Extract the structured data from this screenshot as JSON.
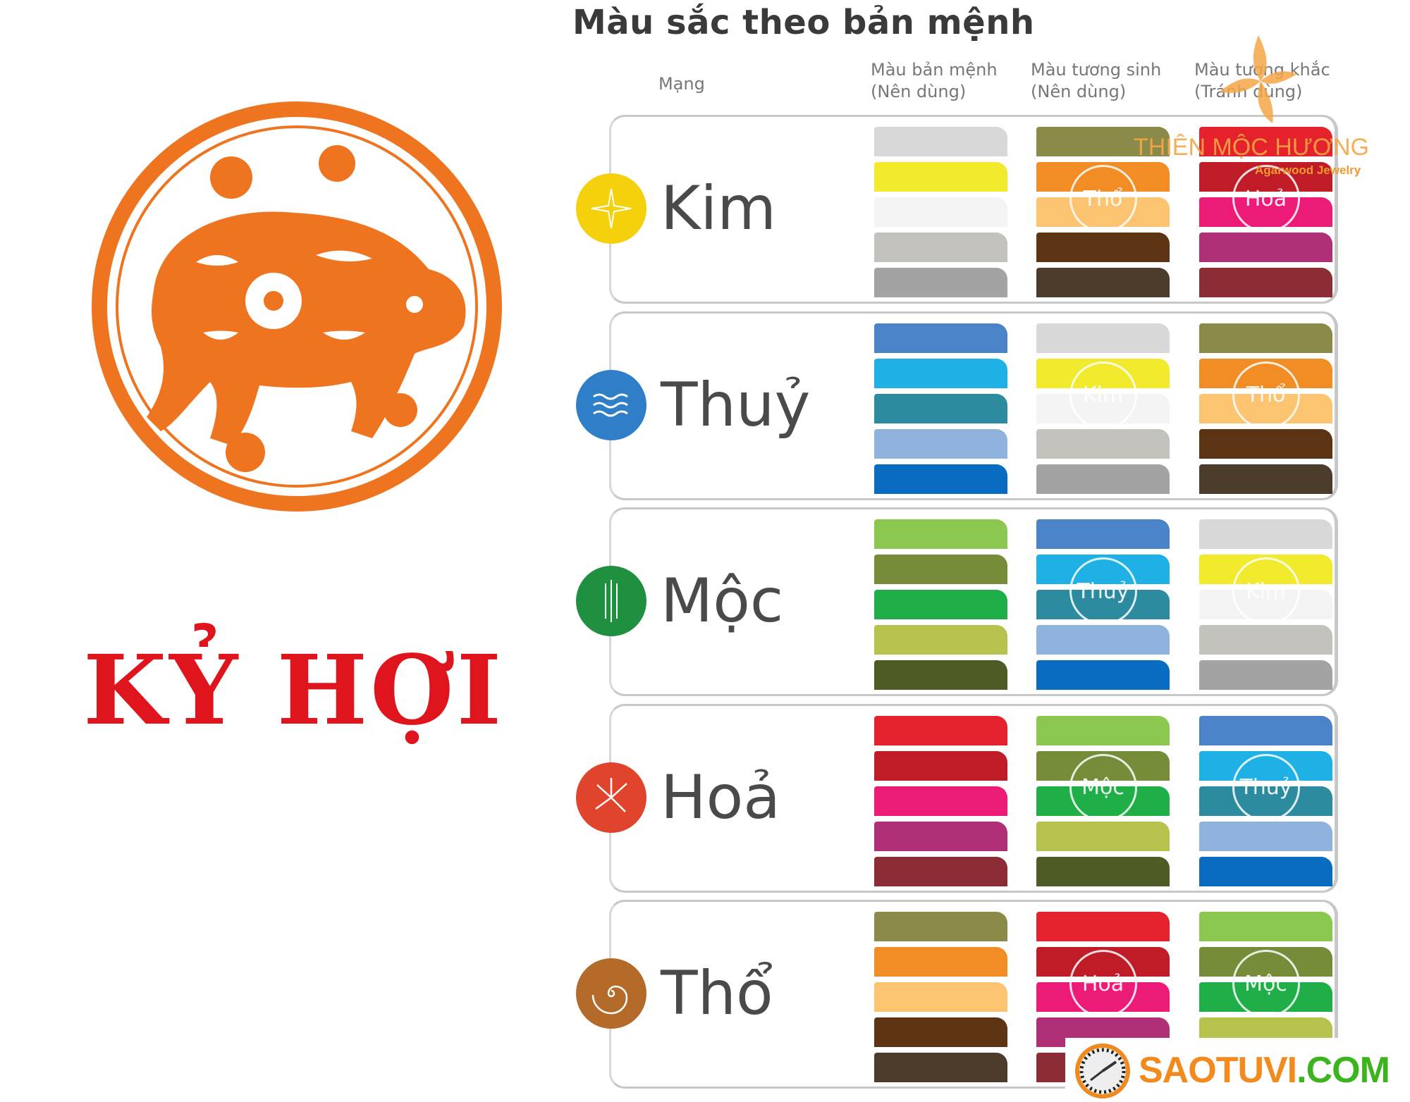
{
  "title": "Màu sắc theo bản mệnh",
  "left": {
    "heading": "KỶ HỢI",
    "emblem": "orange paper-cut pig in circle"
  },
  "headers": {
    "mang": "Mạng",
    "own_1": "Màu bản mệnh",
    "own_2": "(Nên dùng)",
    "sinh_1": "Màu tương sinh",
    "sinh_2": "(Nên dùng)",
    "khac_1": "Màu tương khắc",
    "khac_2": "(Tránh dùng)"
  },
  "rows": [
    {
      "name": "Kim",
      "icon": "sparkle-icon",
      "color": "#f5d10c",
      "own": [
        "#d8d8d8",
        "#f2ea2c",
        "#f4f4f4",
        "#c4c2bc",
        "#a3a3a3"
      ],
      "sinh_label": "Thổ",
      "sinh": [
        "#8c8a48",
        "#f28c24",
        "#fcc470",
        "#5c3414",
        "#4c3c2c"
      ],
      "khac_label": "Hoả",
      "khac": [
        "#e5222c",
        "#c01c28",
        "#ec1b78",
        "#b03078",
        "#8c2c34"
      ]
    },
    {
      "name": "Thuỷ",
      "icon": "waves-icon",
      "color": "#2f7fc8",
      "own": [
        "#4a83c8",
        "#1fb0e6",
        "#2d8ba0",
        "#8fb3dd",
        "#0a6cc0"
      ],
      "sinh_label": "Kim",
      "sinh": [
        "#d8d8d8",
        "#f2ea2c",
        "#f4f4f4",
        "#c4c2bc",
        "#a3a3a3"
      ],
      "khac_label": "Thổ",
      "khac": [
        "#8c8a48",
        "#f28c24",
        "#fcc470",
        "#5c3414",
        "#4c3c2c"
      ]
    },
    {
      "name": "Mộc",
      "icon": "tree-icon",
      "color": "#1f9040",
      "own": [
        "#8cc850",
        "#768c38",
        "#1fae48",
        "#b7c24c",
        "#4c5c24"
      ],
      "sinh_label": "Thuỷ",
      "sinh": [
        "#4a83c8",
        "#1fb0e6",
        "#2d8ba0",
        "#8fb3dd",
        "#0a6cc0"
      ],
      "khac_label": "Kim",
      "khac": [
        "#d8d8d8",
        "#f2ea2c",
        "#f4f4f4",
        "#c4c2bc",
        "#a3a3a3"
      ]
    },
    {
      "name": "Hoả",
      "icon": "fire-icon",
      "color": "#e0442c",
      "own": [
        "#e5222c",
        "#c01c28",
        "#ec1b78",
        "#b03078",
        "#8c2c34"
      ],
      "sinh_label": "Mộc",
      "sinh": [
        "#8cc850",
        "#768c38",
        "#1fae48",
        "#b7c24c",
        "#4c5c24"
      ],
      "khac_label": "Thuỷ",
      "khac": [
        "#4a83c8",
        "#1fb0e6",
        "#2d8ba0",
        "#8fb3dd",
        "#0a6cc0"
      ]
    },
    {
      "name": "Thổ",
      "icon": "spiral-icon",
      "color": "#b46a28",
      "own": [
        "#8c8a48",
        "#f28c24",
        "#fcc470",
        "#5c3414",
        "#4c3c2c"
      ],
      "sinh_label": "Hoả",
      "sinh": [
        "#e5222c",
        "#c01c28",
        "#ec1b78",
        "#b03078",
        "#8c2c34"
      ],
      "khac_label": "Mộc",
      "khac": [
        "#8cc850",
        "#768c38",
        "#1fae48",
        "#b7c24c",
        "#4c5c24"
      ]
    }
  ],
  "watermark": {
    "name": "THIÊN MỘC HƯƠNG",
    "sub": "Agarwood Jewelry",
    "color": "#f5a646"
  },
  "logo": {
    "text_main": "SAOTUVI",
    "text_tld": ".COM",
    "main_color": "#f28a1e",
    "tld_color": "#3cb41e"
  }
}
